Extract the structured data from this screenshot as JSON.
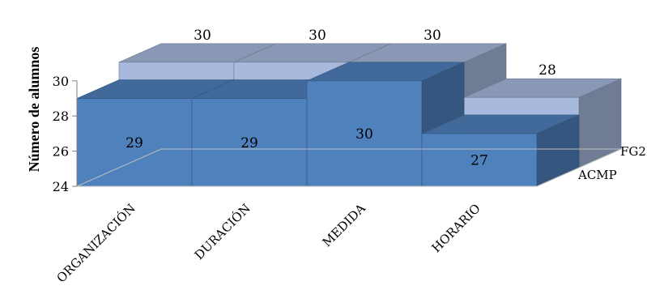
{
  "chart_data": {
    "type": "bar",
    "subtype": "3d-clustered-depth",
    "categories": [
      "ORGANIZACIÓN",
      "DURACIÓN",
      "MEDIDA",
      "HORARIO"
    ],
    "series": [
      {
        "name": "ACMP",
        "values": [
          29,
          29,
          30,
          27
        ],
        "color": "#4f81bd"
      },
      {
        "name": "FG2",
        "values": [
          30,
          30,
          30,
          28
        ],
        "color": "#a7b9dc"
      }
    ],
    "ylabel": "Número de alumnos",
    "ylim": [
      24,
      31
    ],
    "yticks": [
      24,
      26,
      28,
      30
    ],
    "grid": false,
    "legend": "series labels on depth axis (right)"
  }
}
